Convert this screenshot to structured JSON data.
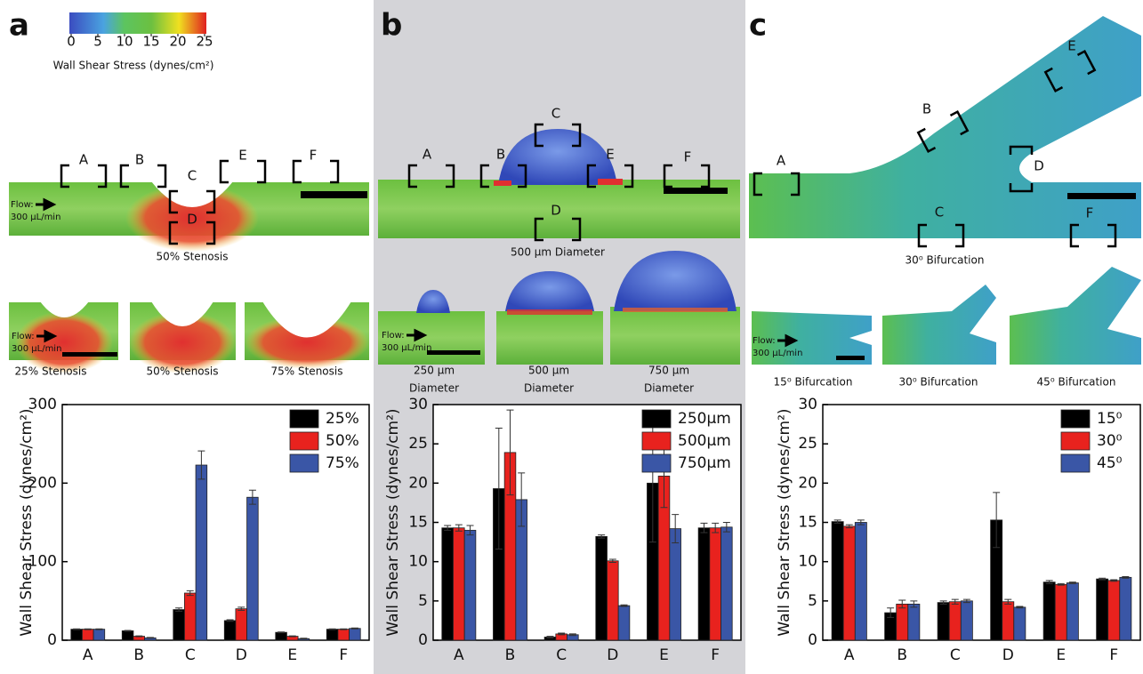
{
  "panel_labels": [
    "a",
    "b",
    "c"
  ],
  "colorbar": {
    "title": "Wall Shear Stress (dynes/cm²)",
    "lim": [
      0,
      25
    ],
    "ticks": [
      0,
      5,
      10,
      15,
      20,
      25
    ]
  },
  "panels": [
    {
      "flow": [
        "Flow:",
        "300 μL/min"
      ],
      "regions": [
        "A",
        "B",
        "C",
        "D",
        "E",
        "F"
      ],
      "caption": "50% Stenosis",
      "variants": [
        [
          "25% Stenosis"
        ],
        [
          "50% Stenosis"
        ],
        [
          "75% Stenosis"
        ]
      ]
    },
    {
      "flow": [
        "Flow:",
        "300 μL/min"
      ],
      "regions": [
        "A",
        "B",
        "C",
        "D",
        "E",
        "F"
      ],
      "caption": "500 μm Diameter",
      "variants": [
        [
          "250 μm",
          "Diameter"
        ],
        [
          "500 μm",
          "Diameter"
        ],
        [
          "750 μm",
          "Diameter"
        ]
      ]
    },
    {
      "flow": [
        "Flow:",
        "300 μL/min"
      ],
      "regions": [
        "A",
        "B",
        "C",
        "D",
        "E",
        "F"
      ],
      "caption": "30⁰ Bifurcation",
      "variants": [
        [
          "15⁰ Bifurcation"
        ],
        [
          "30⁰ Bifurcation"
        ],
        [
          "45⁰ Bifurcation"
        ]
      ]
    }
  ],
  "chart_data": [
    {
      "type": "bar",
      "y_label": "Wall Shear Stress (dynes/cm²)",
      "categories": [
        "A",
        "B",
        "C",
        "D",
        "E",
        "F"
      ],
      "ylim": [
        0,
        300
      ],
      "yticks": [
        0,
        100,
        200,
        300
      ],
      "legend": "upper right",
      "series": [
        {
          "name": "25%",
          "color": "#000000",
          "values": [
            14,
            12,
            39,
            25,
            10,
            14
          ],
          "errors": [
            0.5,
            0.5,
            2,
            1,
            0.5,
            0.5
          ]
        },
        {
          "name": "50%",
          "color": "#e8221e",
          "values": [
            14,
            5,
            60,
            40,
            5,
            14
          ],
          "errors": [
            0.5,
            0.5,
            3,
            2,
            0.5,
            0.5
          ]
        },
        {
          "name": "75%",
          "color": "#3a56a6",
          "values": [
            14,
            3,
            223,
            182,
            2,
            15
          ],
          "errors": [
            0.5,
            0.5,
            18,
            9,
            0.5,
            0.5
          ]
        }
      ]
    },
    {
      "type": "bar",
      "y_label": "Wall Shear Stress (dynes/cm²)",
      "categories": [
        "A",
        "B",
        "C",
        "D",
        "E",
        "F"
      ],
      "ylim": [
        0,
        30
      ],
      "yticks": [
        0,
        5,
        10,
        15,
        20,
        25,
        30
      ],
      "legend": "upper right",
      "series": [
        {
          "name": "250μm",
          "color": "#000000",
          "values": [
            14.3,
            19.3,
            0.4,
            13.2,
            20.0,
            14.3
          ],
          "errors": [
            0.3,
            7.7,
            0.1,
            0.2,
            7.5,
            0.6
          ]
        },
        {
          "name": "500μm",
          "color": "#e8221e",
          "values": [
            14.3,
            23.9,
            0.8,
            10.1,
            20.9,
            14.3
          ],
          "errors": [
            0.4,
            5.4,
            0.1,
            0.2,
            4.0,
            0.6
          ]
        },
        {
          "name": "750μm",
          "color": "#3a56a6",
          "values": [
            14.0,
            17.9,
            0.7,
            4.4,
            14.2,
            14.4
          ],
          "errors": [
            0.6,
            3.4,
            0.1,
            0.1,
            1.8,
            0.6
          ]
        }
      ]
    },
    {
      "type": "bar",
      "y_label": "Wall Shear Stress (dynes/cm²)",
      "categories": [
        "A",
        "B",
        "C",
        "D",
        "E",
        "F"
      ],
      "ylim": [
        0,
        30
      ],
      "yticks": [
        0,
        5,
        10,
        15,
        20,
        25,
        30
      ],
      "legend": "upper right",
      "series": [
        {
          "name": "15⁰",
          "color": "#000000",
          "values": [
            15.1,
            3.5,
            4.8,
            15.3,
            7.4,
            7.8
          ],
          "errors": [
            0.2,
            0.6,
            0.2,
            3.5,
            0.2,
            0.1
          ]
        },
        {
          "name": "30⁰",
          "color": "#e8221e",
          "values": [
            14.5,
            4.6,
            4.9,
            4.9,
            7.1,
            7.6
          ],
          "errors": [
            0.2,
            0.5,
            0.3,
            0.3,
            0.1,
            0.1
          ]
        },
        {
          "name": "45⁰",
          "color": "#3a56a6",
          "values": [
            15.0,
            4.6,
            5.0,
            4.2,
            7.3,
            8.0
          ],
          "errors": [
            0.3,
            0.4,
            0.2,
            0.1,
            0.1,
            0.1
          ]
        }
      ]
    }
  ]
}
